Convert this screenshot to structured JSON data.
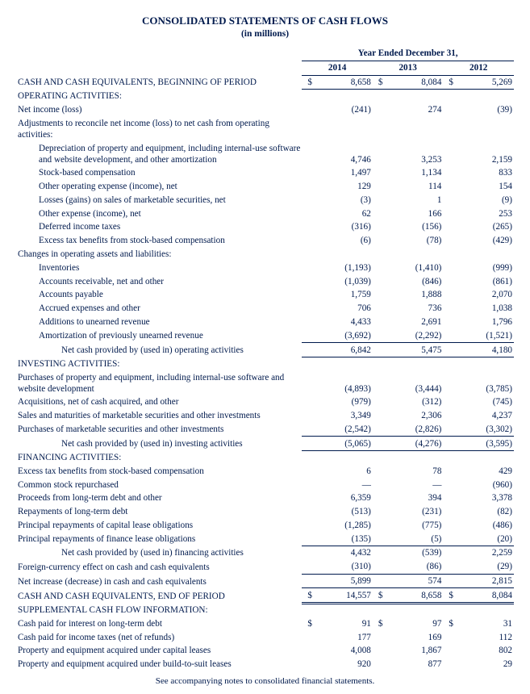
{
  "header": {
    "title": "CONSOLIDATED STATEMENTS OF CASH FLOWS",
    "subtitle": "(in millions)"
  },
  "columns": {
    "span_label": "Year Ended December 31,",
    "years": [
      "2014",
      "2013",
      "2012"
    ]
  },
  "rows": [
    {
      "label": "CASH AND CASH EQUIVALENTS, BEGINNING OF PERIOD",
      "indent": 0,
      "cur": "$",
      "v": [
        "8,658",
        "8,084",
        "5,269"
      ],
      "cur_after": true,
      "bb": true
    },
    {
      "label": "OPERATING ACTIVITIES:",
      "indent": 0,
      "section": true
    },
    {
      "label": "Net income (loss)",
      "indent": 0,
      "v": [
        "(241)",
        "274",
        "(39)"
      ]
    },
    {
      "label": "Adjustments to reconcile net income (loss) to net cash from operating activities:",
      "indent": 0
    },
    {
      "label": "Depreciation of property and equipment, including internal-use software and website development, and other amortization",
      "indent": 2,
      "v": [
        "4,746",
        "3,253",
        "2,159"
      ]
    },
    {
      "label": "Stock-based compensation",
      "indent": 2,
      "v": [
        "1,497",
        "1,134",
        "833"
      ]
    },
    {
      "label": "Other operating expense (income), net",
      "indent": 2,
      "v": [
        "129",
        "114",
        "154"
      ]
    },
    {
      "label": "Losses (gains) on sales of marketable securities, net",
      "indent": 2,
      "v": [
        "(3)",
        "1",
        "(9)"
      ]
    },
    {
      "label": "Other expense (income), net",
      "indent": 2,
      "v": [
        "62",
        "166",
        "253"
      ]
    },
    {
      "label": "Deferred income taxes",
      "indent": 2,
      "v": [
        "(316)",
        "(156)",
        "(265)"
      ]
    },
    {
      "label": "Excess tax benefits from stock-based compensation",
      "indent": 2,
      "v": [
        "(6)",
        "(78)",
        "(429)"
      ]
    },
    {
      "label": "Changes in operating assets and liabilities:",
      "indent": 0
    },
    {
      "label": "Inventories",
      "indent": 2,
      "v": [
        "(1,193)",
        "(1,410)",
        "(999)"
      ]
    },
    {
      "label": "Accounts receivable, net and other",
      "indent": 2,
      "v": [
        "(1,039)",
        "(846)",
        "(861)"
      ]
    },
    {
      "label": "Accounts payable",
      "indent": 2,
      "v": [
        "1,759",
        "1,888",
        "2,070"
      ]
    },
    {
      "label": "Accrued expenses and other",
      "indent": 2,
      "v": [
        "706",
        "736",
        "1,038"
      ]
    },
    {
      "label": "Additions to unearned revenue",
      "indent": 2,
      "v": [
        "4,433",
        "2,691",
        "1,796"
      ]
    },
    {
      "label": "Amortization of previously unearned revenue",
      "indent": 2,
      "v": [
        "(3,692)",
        "(2,292)",
        "(1,521)"
      ],
      "bb": true
    },
    {
      "label": "Net cash provided by (used in) operating activities",
      "indent": 3,
      "v": [
        "6,842",
        "5,475",
        "4,180"
      ],
      "bb": true
    },
    {
      "label": "INVESTING ACTIVITIES:",
      "indent": 0,
      "section": true
    },
    {
      "label": "Purchases of property and equipment, including internal-use software and website development",
      "indent": 0,
      "v": [
        "(4,893)",
        "(3,444)",
        "(3,785)"
      ]
    },
    {
      "label": "Acquisitions, net of cash acquired, and other",
      "indent": 0,
      "v": [
        "(979)",
        "(312)",
        "(745)"
      ]
    },
    {
      "label": "Sales and maturities of marketable securities and other investments",
      "indent": 0,
      "v": [
        "3,349",
        "2,306",
        "4,237"
      ]
    },
    {
      "label": "Purchases of marketable securities and other investments",
      "indent": 0,
      "v": [
        "(2,542)",
        "(2,826)",
        "(3,302)"
      ],
      "bb": true
    },
    {
      "label": "Net cash provided by (used in) investing activities",
      "indent": 3,
      "v": [
        "(5,065)",
        "(4,276)",
        "(3,595)"
      ],
      "bb": true
    },
    {
      "label": "FINANCING ACTIVITIES:",
      "indent": 0,
      "section": true
    },
    {
      "label": "Excess tax benefits from stock-based compensation",
      "indent": 0,
      "v": [
        "6",
        "78",
        "429"
      ]
    },
    {
      "label": "Common stock repurchased",
      "indent": 0,
      "v": [
        "—",
        "—",
        "(960)"
      ]
    },
    {
      "label": "Proceeds from long-term debt and other",
      "indent": 0,
      "v": [
        "6,359",
        "394",
        "3,378"
      ]
    },
    {
      "label": "Repayments of long-term debt",
      "indent": 0,
      "v": [
        "(513)",
        "(231)",
        "(82)"
      ]
    },
    {
      "label": "Principal repayments of capital lease obligations",
      "indent": 0,
      "v": [
        "(1,285)",
        "(775)",
        "(486)"
      ]
    },
    {
      "label": "Principal repayments of finance lease obligations",
      "indent": 0,
      "v": [
        "(135)",
        "(5)",
        "(20)"
      ],
      "bb": true
    },
    {
      "label": "Net cash provided by (used in) financing activities",
      "indent": 3,
      "v": [
        "4,432",
        "(539)",
        "2,259"
      ]
    },
    {
      "label": "Foreign-currency effect on cash and cash equivalents",
      "indent": 0,
      "v": [
        "(310)",
        "(86)",
        "(29)"
      ],
      "bb": true
    },
    {
      "label": "Net increase (decrease) in cash and cash equivalents",
      "indent": 0,
      "v": [
        "5,899",
        "574",
        "2,815"
      ],
      "bb": true
    },
    {
      "label": "CASH AND CASH EQUIVALENTS, END OF PERIOD",
      "indent": 0,
      "cur": "$",
      "v": [
        "14,557",
        "8,658",
        "8,084"
      ],
      "cur_after": true,
      "dbl": true
    },
    {
      "label": "SUPPLEMENTAL CASH FLOW INFORMATION:",
      "indent": 0,
      "section": true
    },
    {
      "label": "Cash paid for interest on long-term debt",
      "indent": 0,
      "cur": "$",
      "v": [
        "91",
        "97",
        "31"
      ],
      "cur_after": true
    },
    {
      "label": "Cash paid for income taxes (net of refunds)",
      "indent": 0,
      "v": [
        "177",
        "169",
        "112"
      ]
    },
    {
      "label": "Property and equipment acquired under capital leases",
      "indent": 0,
      "v": [
        "4,008",
        "1,867",
        "802"
      ]
    },
    {
      "label": "Property and equipment acquired under build-to-suit leases",
      "indent": 0,
      "v": [
        "920",
        "877",
        "29"
      ]
    }
  ],
  "footnote": "See accompanying notes to consolidated financial statements."
}
